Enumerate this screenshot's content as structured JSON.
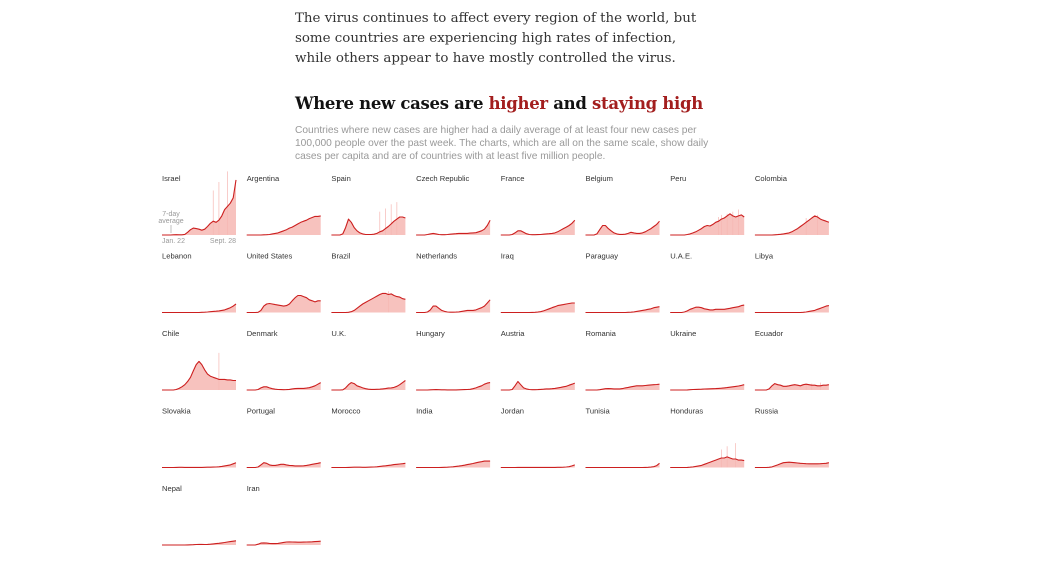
{
  "intro": "The virus continues to affect every region of the world, but some countries are experiencing high rates of infection, while others appear to have mostly controlled the virus.",
  "heading": {
    "part1": "Where new cases are ",
    "higher": "higher",
    "part2": " and ",
    "staying": "staying high"
  },
  "note": "Countries where new cases are higher had a daily average of at least four new cases per 100,000 people over the past week. The charts, which are all on the same scale, show daily cases per capita and are of countries with at least five million people.",
  "colors": {
    "line": "#cc1f1f",
    "fill": "#f6b7b3",
    "accent": "#a31e1e"
  },
  "chart_data": {
    "type": "area",
    "legend_label_line1": "7-day",
    "legend_label_line2": "average",
    "x_start_label": "Jan. 22",
    "x_end_label": "Sept. 28",
    "shared_scale": true,
    "series": [
      {
        "name": "Israel",
        "values": [
          0,
          0,
          0,
          0,
          0.2,
          0.3,
          0.2,
          0.2,
          0.6,
          2.5,
          5,
          6.5,
          6,
          5.5,
          4.5,
          5.5,
          8,
          11,
          13,
          12,
          14,
          18,
          24,
          27,
          30,
          35,
          52
        ],
        "spikes": [
          42,
          50,
          60
        ]
      },
      {
        "name": "Argentina",
        "values": [
          0,
          0,
          0,
          0,
          0,
          0,
          0.2,
          0.3,
          0.5,
          1,
          1.5,
          2,
          3,
          4,
          5,
          6.5,
          7.5,
          9,
          10.5,
          12,
          13,
          14,
          15.5,
          16.5,
          17.5,
          17.5,
          18
        ],
        "spikes": []
      },
      {
        "name": "Spain",
        "values": [
          0,
          0,
          0,
          0,
          1,
          7,
          15,
          12,
          7,
          4,
          2,
          1,
          0.5,
          0.5,
          0.5,
          0.8,
          1.5,
          3,
          4,
          6,
          8,
          10.5,
          13,
          15,
          17,
          17,
          16
        ],
        "spikes": [
          22,
          25,
          29,
          31
        ]
      },
      {
        "name": "Czech Republic",
        "values": [
          0,
          0,
          0,
          0,
          0.5,
          1,
          1.5,
          1,
          0.5,
          0.3,
          0.3,
          0.5,
          0.8,
          1,
          1.2,
          1.5,
          1.5,
          1.5,
          1.5,
          1.8,
          2,
          2.2,
          3,
          4,
          5.5,
          9,
          14
        ],
        "spikes": []
      },
      {
        "name": "France",
        "values": [
          0,
          0,
          0,
          0,
          0.5,
          2,
          4,
          4,
          2.5,
          1.2,
          0.5,
          0.3,
          0.3,
          0.4,
          0.5,
          0.8,
          1,
          1.2,
          1.5,
          2,
          3,
          4.5,
          6,
          7.5,
          9,
          11,
          14
        ],
        "spikes": []
      },
      {
        "name": "Belgium",
        "values": [
          0,
          0,
          0,
          0,
          1,
          5,
          9,
          9,
          6,
          4,
          2,
          1,
          0.6,
          0.6,
          0.8,
          1.5,
          2.5,
          2,
          1.5,
          1.5,
          2,
          3,
          4.5,
          6,
          8,
          10,
          13
        ],
        "spikes": []
      },
      {
        "name": "Peru",
        "values": [
          0,
          0,
          0,
          0,
          0,
          0,
          0.5,
          1,
          2,
          3,
          4.5,
          6,
          8,
          9,
          8.5,
          10,
          12,
          13,
          15,
          16,
          18,
          20,
          18,
          17,
          18,
          19,
          17
        ],
        "spikes": [
          17,
          19,
          20,
          22,
          24
        ]
      },
      {
        "name": "Colombia",
        "values": [
          0,
          0,
          0,
          0,
          0,
          0,
          0,
          0.2,
          0.4,
          0.7,
          1,
          1.5,
          2,
          3,
          4.5,
          6,
          8,
          10,
          12,
          14,
          16,
          18,
          17,
          15,
          14,
          13,
          12
        ],
        "spikes": [
          16,
          19
        ]
      },
      {
        "name": "Lebanon",
        "values": [
          0,
          0,
          0,
          0,
          0,
          0,
          0,
          0,
          0,
          0,
          0,
          0,
          0,
          0,
          0.2,
          0.3,
          0.5,
          0.8,
          1,
          1.2,
          1.5,
          2,
          2.5,
          3.5,
          4.5,
          6,
          8
        ],
        "spikes": []
      },
      {
        "name": "United States",
        "values": [
          0,
          0,
          0,
          0,
          0.2,
          2,
          6,
          8,
          8.5,
          8,
          7.5,
          7,
          6.5,
          6,
          6.5,
          8,
          11,
          14,
          16,
          16,
          15,
          14,
          12,
          11,
          10,
          11,
          11
        ],
        "spikes": []
      },
      {
        "name": "Brazil",
        "values": [
          0,
          0,
          0,
          0,
          0,
          0,
          0.2,
          0.8,
          2,
          4,
          6,
          8,
          9.5,
          11,
          12.5,
          14,
          15.5,
          17,
          18,
          18,
          17,
          17.5,
          16,
          15,
          14.5,
          13,
          12.5
        ],
        "spikes": [
          20
        ]
      },
      {
        "name": "Netherlands",
        "values": [
          0,
          0,
          0,
          0,
          0.5,
          2.5,
          6,
          6,
          4,
          2,
          1,
          0.5,
          0.3,
          0.3,
          0.4,
          0.6,
          1,
          1.5,
          2,
          2,
          2,
          2.5,
          3.5,
          4.5,
          6,
          9,
          12
        ],
        "spikes": []
      },
      {
        "name": "Iraq",
        "values": [
          0,
          0,
          0,
          0,
          0,
          0,
          0,
          0,
          0,
          0,
          0,
          0.1,
          0.2,
          0.4,
          0.8,
          1.5,
          2.5,
          3.5,
          4.5,
          5.5,
          6.5,
          7,
          7.5,
          8,
          8.5,
          9,
          9
        ],
        "spikes": []
      },
      {
        "name": "Paraguay",
        "values": [
          0,
          0,
          0,
          0,
          0,
          0,
          0,
          0,
          0,
          0,
          0,
          0,
          0,
          0,
          0,
          0.2,
          0.3,
          0.6,
          1,
          1.5,
          2,
          2.5,
          3,
          3.5,
          4.5,
          5,
          5.5
        ],
        "spikes": []
      },
      {
        "name": "U.A.E.",
        "values": [
          0,
          0,
          0,
          0,
          0,
          0.5,
          1.5,
          3,
          4,
          5,
          5,
          4.5,
          3.5,
          3,
          2.5,
          2.5,
          3,
          3,
          3,
          3,
          3.5,
          4,
          4.5,
          5,
          5.5,
          6.5,
          7
        ],
        "spikes": []
      },
      {
        "name": "Libya",
        "values": [
          0,
          0,
          0,
          0,
          0,
          0,
          0,
          0,
          0,
          0,
          0,
          0,
          0,
          0,
          0,
          0,
          0,
          0.2,
          0.5,
          1,
          1.5,
          2,
          3,
          4,
          5,
          6,
          6.5
        ],
        "spikes": []
      },
      {
        "name": "Chile",
        "values": [
          0,
          0,
          0,
          0,
          0,
          0.5,
          1.5,
          3,
          5,
          8,
          12,
          18,
          24,
          27,
          24,
          19,
          15,
          13,
          12,
          11,
          10,
          10,
          10,
          9.5,
          9.5,
          9,
          9
        ],
        "spikes": [
          35
        ]
      },
      {
        "name": "Denmark",
        "values": [
          0,
          0,
          0,
          0,
          0.5,
          2,
          3,
          3,
          2,
          1.2,
          0.8,
          0.5,
          0.4,
          0.3,
          0.4,
          0.6,
          1,
          1.3,
          1.5,
          1.5,
          1.5,
          1.8,
          2.2,
          3,
          4,
          5.5,
          7
        ],
        "spikes": []
      },
      {
        "name": "U.K.",
        "values": [
          0,
          0,
          0,
          0,
          0.2,
          2,
          5,
          7,
          6,
          4,
          3,
          2,
          1.2,
          0.8,
          0.6,
          0.6,
          0.7,
          0.8,
          1,
          1.3,
          1.8,
          2,
          2.5,
          3.5,
          5,
          7,
          9
        ],
        "spikes": []
      },
      {
        "name": "Hungary",
        "values": [
          0,
          0,
          0,
          0,
          0,
          0.2,
          0.3,
          0.4,
          0.3,
          0.2,
          0.2,
          0.1,
          0.1,
          0.1,
          0.1,
          0.2,
          0.3,
          0.4,
          0.5,
          0.7,
          1.2,
          2,
          3,
          4,
          5.5,
          6.5,
          7
        ],
        "spikes": []
      },
      {
        "name": "Austria",
        "values": [
          0,
          0,
          0,
          0,
          0.5,
          4,
          8,
          5,
          2,
          1,
          0.5,
          0.3,
          0.3,
          0.4,
          0.6,
          0.8,
          1,
          1,
          1.2,
          1.5,
          2,
          2.5,
          3,
          3.5,
          4.5,
          5.5,
          6.5
        ],
        "spikes": []
      },
      {
        "name": "Romania",
        "values": [
          0,
          0,
          0,
          0,
          0,
          0.3,
          0.8,
          1.2,
          1.3,
          1.2,
          1,
          1,
          1,
          1.3,
          2,
          2.5,
          3,
          3.5,
          4,
          4,
          4,
          4.2,
          4.5,
          4.8,
          5,
          5.2,
          5.5
        ],
        "spikes": []
      },
      {
        "name": "Ukraine",
        "values": [
          0,
          0,
          0,
          0,
          0,
          0,
          0.1,
          0.3,
          0.5,
          0.6,
          0.7,
          0.8,
          0.9,
          1,
          1.1,
          1.2,
          1.3,
          1.5,
          1.7,
          2,
          2.3,
          2.6,
          3,
          3.4,
          3.8,
          4.3,
          5
        ],
        "spikes": []
      },
      {
        "name": "Ecuador",
        "values": [
          0,
          0,
          0,
          0,
          0,
          1,
          4,
          6,
          5,
          4.5,
          3.5,
          3.5,
          4,
          4.5,
          5,
          4.5,
          4,
          5,
          5.5,
          5,
          4.5,
          4.5,
          4,
          4,
          4.5,
          4.5,
          5
        ],
        "spikes": [
          5,
          6,
          7
        ]
      },
      {
        "name": "Slovakia",
        "values": [
          0,
          0,
          0,
          0,
          0,
          0.1,
          0.2,
          0.2,
          0.1,
          0.1,
          0.1,
          0.1,
          0.1,
          0.1,
          0.1,
          0.2,
          0.3,
          0.3,
          0.4,
          0.5,
          0.7,
          1,
          1.5,
          2,
          2.5,
          3.5,
          4.5
        ],
        "spikes": []
      },
      {
        "name": "Portugal",
        "values": [
          0,
          0,
          0,
          0,
          0.5,
          2.5,
          4.5,
          4,
          2.5,
          2,
          2,
          2.5,
          3,
          3,
          2.5,
          2,
          1.8,
          1.5,
          1.5,
          1.5,
          1.6,
          2,
          2.5,
          3,
          3.5,
          4,
          4.5
        ],
        "spikes": []
      },
      {
        "name": "Morocco",
        "values": [
          0,
          0,
          0,
          0,
          0,
          0,
          0.1,
          0.2,
          0.3,
          0.3,
          0.3,
          0.2,
          0.2,
          0.3,
          0.4,
          0.5,
          0.7,
          1,
          1.3,
          1.6,
          2,
          2.3,
          2.7,
          3,
          3.3,
          3.6,
          4
        ],
        "spikes": []
      },
      {
        "name": "India",
        "values": [
          0,
          0,
          0,
          0,
          0,
          0,
          0,
          0,
          0,
          0.1,
          0.2,
          0.3,
          0.5,
          0.7,
          1,
          1.3,
          1.7,
          2.2,
          2.7,
          3.2,
          3.8,
          4.4,
          5,
          5.5,
          6,
          6,
          6
        ],
        "spikes": []
      },
      {
        "name": "Jordan",
        "values": [
          0,
          0,
          0,
          0,
          0,
          0,
          0.1,
          0.1,
          0.1,
          0.1,
          0.1,
          0.1,
          0.1,
          0.1,
          0.1,
          0.1,
          0.1,
          0.1,
          0.1,
          0.1,
          0.2,
          0.2,
          0.3,
          0.5,
          0.8,
          1.5,
          2.5
        ],
        "spikes": []
      },
      {
        "name": "Tunisia",
        "values": [
          0,
          0,
          0,
          0,
          0,
          0,
          0,
          0,
          0,
          0,
          0,
          0,
          0,
          0,
          0,
          0,
          0,
          0,
          0,
          0,
          0,
          0.1,
          0.2,
          0.4,
          0.8,
          1.8,
          4
        ],
        "spikes": []
      },
      {
        "name": "Honduras",
        "values": [
          0,
          0,
          0,
          0,
          0,
          0,
          0.1,
          0.3,
          0.6,
          1,
          1.5,
          2,
          3,
          4,
          5,
          6,
          7,
          8,
          9,
          9,
          10,
          9,
          8,
          8,
          7,
          7,
          6.5
        ],
        "spikes": [
          17,
          20,
          23
        ]
      },
      {
        "name": "Russia",
        "values": [
          0,
          0,
          0,
          0,
          0,
          0.2,
          0.6,
          1.5,
          2.5,
          3.5,
          4.5,
          4.8,
          5,
          4.8,
          4.5,
          4.2,
          4,
          3.8,
          3.6,
          3.5,
          3.5,
          3.5,
          3.5,
          3.6,
          3.8,
          4,
          4.5
        ],
        "spikes": []
      },
      {
        "name": "Nepal",
        "values": [
          0,
          0,
          0,
          0,
          0,
          0,
          0,
          0,
          0,
          0.1,
          0.2,
          0.3,
          0.5,
          0.6,
          0.6,
          0.5,
          0.6,
          0.8,
          1,
          1.3,
          1.6,
          2,
          2.4,
          2.8,
          3.2,
          3.6,
          4
        ],
        "spikes": []
      },
      {
        "name": "Iran",
        "values": [
          0,
          0,
          0,
          0,
          0.8,
          1.8,
          2,
          1.8,
          1.5,
          1.3,
          1.3,
          1.5,
          2,
          2.5,
          2.8,
          2.9,
          2.8,
          2.7,
          2.6,
          2.6,
          2.7,
          2.8,
          2.9,
          3,
          3.2,
          3.4,
          3.6
        ],
        "spikes": []
      }
    ]
  }
}
